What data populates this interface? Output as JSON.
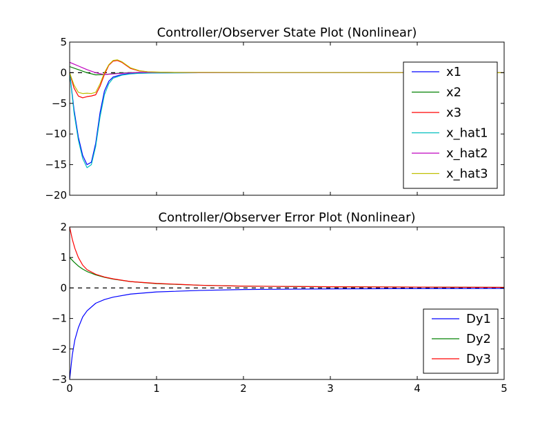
{
  "colors": {
    "x1": "#0000ff",
    "x2": "#008000",
    "x3": "#ff0000",
    "x_hat1": "#00bfbf",
    "x_hat2": "#bf00bf",
    "x_hat3": "#bfbf00"
  },
  "chart_data": [
    {
      "type": "line",
      "title": "Controller/Observer State Plot (Nonlinear)",
      "xlim": [
        0,
        5
      ],
      "ylim": [
        -20,
        5
      ],
      "xticks": [],
      "yticks": [
        5,
        0,
        -5,
        -10,
        -15,
        -20
      ],
      "ytick_labels": [
        "5",
        "0",
        "−5",
        "−10",
        "−15",
        "−20"
      ],
      "legend_location": "right",
      "reference_line": {
        "y": 0,
        "style": "dashed",
        "color": "#000000"
      },
      "series": [
        {
          "name": "x1",
          "color": "#0000ff",
          "x": [
            0,
            0.05,
            0.1,
            0.15,
            0.2,
            0.25,
            0.3,
            0.35,
            0.4,
            0.45,
            0.5,
            0.6,
            0.7,
            0.8,
            1.0,
            1.5,
            5
          ],
          "y": [
            0,
            -6.0,
            -10.5,
            -13.5,
            -15.0,
            -14.6,
            -11.5,
            -6.5,
            -3.0,
            -1.4,
            -0.7,
            -0.3,
            -0.15,
            -0.08,
            -0.03,
            0,
            0
          ]
        },
        {
          "name": "x2",
          "color": "#008000",
          "x": [
            0,
            0.1,
            0.2,
            0.3,
            0.4,
            0.5,
            0.6,
            0.8,
            1.0,
            1.5,
            5
          ],
          "y": [
            1.0,
            0.5,
            0.0,
            -0.35,
            -0.3,
            -0.15,
            -0.05,
            0.05,
            0.05,
            0.02,
            0
          ]
        },
        {
          "name": "x3",
          "color": "#ff0000",
          "x": [
            0,
            0.05,
            0.1,
            0.15,
            0.2,
            0.25,
            0.3,
            0.35,
            0.4,
            0.45,
            0.5,
            0.55,
            0.6,
            0.65,
            0.7,
            0.8,
            0.9,
            1.0,
            1.2,
            5
          ],
          "y": [
            0,
            -2.5,
            -3.8,
            -4.1,
            -3.9,
            -3.8,
            -3.6,
            -2.2,
            -0.3,
            1.2,
            1.9,
            2.0,
            1.7,
            1.2,
            0.7,
            0.3,
            0.15,
            0.1,
            0.05,
            0
          ]
        },
        {
          "name": "x_hat1",
          "color": "#00bfbf",
          "x": [
            0,
            0.05,
            0.1,
            0.15,
            0.2,
            0.25,
            0.3,
            0.35,
            0.4,
            0.45,
            0.5,
            0.6,
            0.7,
            0.8,
            1.0,
            1.5,
            5
          ],
          "y": [
            0,
            -6.5,
            -11.0,
            -14.0,
            -15.5,
            -15.0,
            -12.0,
            -7.2,
            -3.6,
            -1.8,
            -0.9,
            -0.4,
            -0.2,
            -0.1,
            -0.04,
            0,
            0
          ]
        },
        {
          "name": "x_hat2",
          "color": "#bf00bf",
          "x": [
            0,
            0.05,
            0.1,
            0.15,
            0.2,
            0.3,
            0.4,
            0.5,
            0.6,
            0.8,
            1.0,
            1.5,
            5
          ],
          "y": [
            1.7,
            1.4,
            1.1,
            0.8,
            0.5,
            0.0,
            -0.3,
            -0.2,
            -0.1,
            0.05,
            0.05,
            0.02,
            0
          ]
        },
        {
          "name": "x_hat3",
          "color": "#bfbf00",
          "x": [
            0,
            0.05,
            0.1,
            0.15,
            0.2,
            0.25,
            0.3,
            0.35,
            0.4,
            0.45,
            0.5,
            0.55,
            0.6,
            0.65,
            0.7,
            0.8,
            0.9,
            1.0,
            1.2,
            5
          ],
          "y": [
            0,
            -2.0,
            -3.2,
            -3.4,
            -3.35,
            -3.4,
            -3.2,
            -1.8,
            0.0,
            1.3,
            2.0,
            2.1,
            1.8,
            1.3,
            0.8,
            0.35,
            0.15,
            0.1,
            0.05,
            0
          ]
        }
      ]
    },
    {
      "type": "line",
      "title": "Controller/Observer Error Plot (Nonlinear)",
      "xlim": [
        0,
        5
      ],
      "ylim": [
        -3,
        2
      ],
      "xticks": [
        0,
        1,
        2,
        3,
        4,
        5
      ],
      "xtick_labels": [
        "0",
        "1",
        "2",
        "3",
        "4",
        "5"
      ],
      "yticks": [
        2,
        1,
        0,
        -1,
        -2,
        -3
      ],
      "ytick_labels": [
        "2",
        "1",
        "0",
        "−1",
        "−2",
        "−3"
      ],
      "legend_location": "lower right",
      "reference_line": {
        "y": 0,
        "style": "dashed",
        "color": "#000000"
      },
      "series": [
        {
          "name": "Dy1",
          "color": "#0000ff",
          "x": [
            0,
            0.03,
            0.06,
            0.1,
            0.15,
            0.2,
            0.3,
            0.4,
            0.5,
            0.7,
            1.0,
            1.5,
            2.0,
            3.0,
            4.0,
            5.0
          ],
          "y": [
            -3.0,
            -2.2,
            -1.7,
            -1.3,
            -0.95,
            -0.75,
            -0.5,
            -0.38,
            -0.3,
            -0.2,
            -0.13,
            -0.08,
            -0.05,
            -0.03,
            -0.02,
            -0.015
          ]
        },
        {
          "name": "Dy2",
          "color": "#008000",
          "x": [
            0,
            0.05,
            0.1,
            0.15,
            0.2,
            0.3,
            0.4,
            0.5,
            0.7,
            1.0,
            1.5,
            2.0,
            3.0,
            4.0,
            5.0
          ],
          "y": [
            1.0,
            0.85,
            0.72,
            0.62,
            0.54,
            0.43,
            0.35,
            0.29,
            0.21,
            0.14,
            0.09,
            0.06,
            0.04,
            0.03,
            0.02
          ]
        },
        {
          "name": "Dy3",
          "color": "#ff0000",
          "x": [
            0,
            0.03,
            0.06,
            0.1,
            0.15,
            0.2,
            0.3,
            0.4,
            0.5,
            0.7,
            1.0,
            1.5,
            2.0,
            3.0,
            4.0,
            5.0
          ],
          "y": [
            2.0,
            1.6,
            1.3,
            1.0,
            0.75,
            0.6,
            0.45,
            0.36,
            0.3,
            0.21,
            0.15,
            0.09,
            0.06,
            0.04,
            0.03,
            0.02
          ]
        }
      ]
    }
  ]
}
